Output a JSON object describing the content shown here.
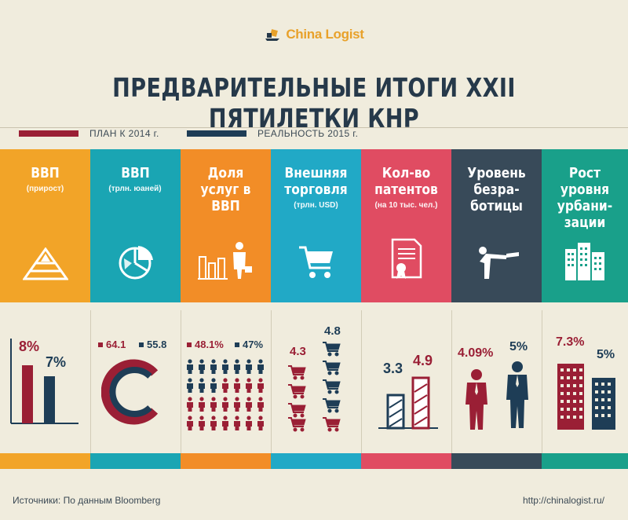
{
  "logo": {
    "text": "China Logist"
  },
  "title": "ПРЕДВАРИТЕЛЬНЫЕ ИТОГИ XXII ПЯТИЛЕТКИ КНР",
  "legend": {
    "plan": {
      "label": "ПЛАН К 2014 г.",
      "color": "#9a1f35"
    },
    "real": {
      "label": "РЕАЛЬНОСТЬ 2015 г.",
      "color": "#1e3d56"
    }
  },
  "columns": [
    {
      "title": "ВВП",
      "subtitle": "(прирост)",
      "color": "#f2a428",
      "icon": "pyramid-icon"
    },
    {
      "title": "ВВП",
      "subtitle": "(трлн. юаней)",
      "color": "#1aa5b3",
      "icon": "pie-chart-icon"
    },
    {
      "title": "Доля услуг в ВВП",
      "subtitle": "",
      "color": "#f28d27",
      "icon": "businessman-chart-icon"
    },
    {
      "title": "Внешняя торговля",
      "subtitle": "(трлн. USD)",
      "color": "#21a9c6",
      "icon": "shopping-cart-icon"
    },
    {
      "title": "Кол-во патентов",
      "subtitle": "(на 10 тыс. чел.)",
      "color": "#e04c62",
      "icon": "certificate-icon"
    },
    {
      "title": "Уровень безра-ботицы",
      "subtitle": "",
      "color": "#384a59",
      "icon": "bowing-man-icon"
    },
    {
      "title": "Рост уровня урбани-зации",
      "subtitle": "",
      "color": "#19a08a",
      "icon": "buildings-icon"
    }
  ],
  "values": {
    "gdp_growth": {
      "plan": "8%",
      "real": "7%"
    },
    "gdp_total": {
      "plan": "64.1",
      "real": "55.8"
    },
    "services": {
      "plan": "48.1%",
      "real": "47%"
    },
    "trade": {
      "plan": "4.3",
      "real": "4.8"
    },
    "patents": {
      "plan": "3.3",
      "real": "4.9"
    },
    "unemployment": {
      "plan": "4.09%",
      "real": "5%"
    },
    "urbanization": {
      "plan": "7.3%",
      "real": "5%"
    }
  },
  "footer": {
    "source": "Источники: По данным Bloomberg",
    "url": "http://chinalogist.ru/"
  }
}
